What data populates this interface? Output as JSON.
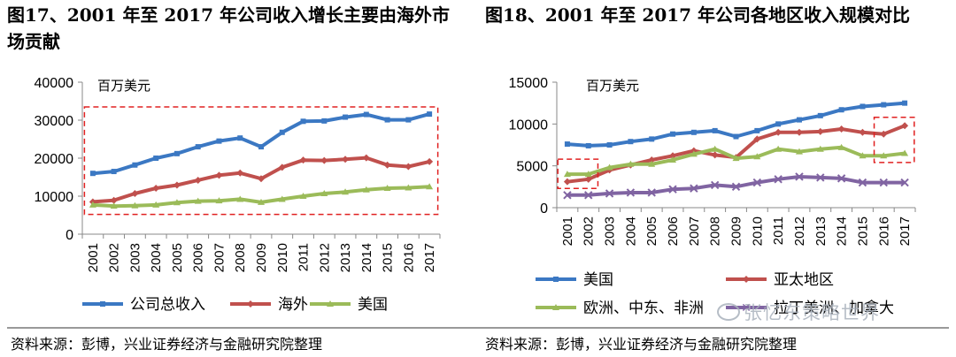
{
  "figure_left": {
    "title": "图17、2001 年至 2017 年公司收入增长主要由海外市场贡献"
  },
  "figure_right": {
    "title": "图18、2001 年至 2017 年公司各地区收入规模对比"
  },
  "source_left": "资料来源：彭博，兴业证券经济与金融研究院整理",
  "source_right": "资料来源：彭博，兴业证券经济与金融研究院整理",
  "watermark": "张忆东策略世界",
  "chart_data": [
    {
      "type": "line",
      "unit_label": "百万美元",
      "x": [
        "2001",
        "2002",
        "2003",
        "2004",
        "2005",
        "2006",
        "2007",
        "2008",
        "2009",
        "2010",
        "2011",
        "2012",
        "2013",
        "2014",
        "2015",
        "2016",
        "2017"
      ],
      "ylim": [
        0,
        40000
      ],
      "yticks": [
        0,
        10000,
        20000,
        30000,
        40000
      ],
      "grid": false,
      "legend_position": "bottom",
      "annotation": "red dashed box highlighting the 公司总收入 and 海外 series",
      "series": [
        {
          "name": "公司总收入",
          "color": "#3b78c3",
          "values": [
            16000,
            16500,
            18200,
            20000,
            21200,
            23000,
            24500,
            25300,
            23000,
            26800,
            29700,
            29800,
            30800,
            31500,
            30100,
            30100,
            31600
          ]
        },
        {
          "name": "海外",
          "color": "#c0504d",
          "values": [
            8500,
            8900,
            10700,
            12100,
            12900,
            14200,
            15500,
            16100,
            14600,
            17600,
            19500,
            19400,
            19700,
            20100,
            18200,
            17800,
            19100
          ]
        },
        {
          "name": "美国",
          "color": "#9bbb59",
          "values": [
            7700,
            7400,
            7500,
            7700,
            8300,
            8700,
            8800,
            9200,
            8400,
            9200,
            10000,
            10700,
            11100,
            11700,
            12100,
            12200,
            12500
          ]
        }
      ]
    },
    {
      "type": "line",
      "unit_label": "百万美元",
      "x": [
        "2001",
        "2002",
        "2003",
        "2004",
        "2005",
        "2006",
        "2007",
        "2008",
        "2009",
        "2010",
        "2011",
        "2012",
        "2013",
        "2014",
        "2015",
        "2016",
        "2017"
      ],
      "ylim": [
        0,
        15000
      ],
      "yticks": [
        0,
        5000,
        10000,
        15000
      ],
      "grid": false,
      "legend_position": "bottom",
      "annotation": "red dashed boxes around 2001-2002 and 2016-2017",
      "series": [
        {
          "name": "美国",
          "color": "#3b78c3",
          "values": [
            7600,
            7400,
            7500,
            7900,
            8200,
            8800,
            9000,
            9200,
            8500,
            9200,
            10000,
            10500,
            11000,
            11700,
            12100,
            12300,
            12500
          ]
        },
        {
          "name": "亚太地区",
          "color": "#c0504d",
          "values": [
            3100,
            3400,
            4500,
            5100,
            5700,
            6200,
            6800,
            6300,
            6000,
            8200,
            9000,
            9000,
            9100,
            9400,
            9000,
            8800,
            9800
          ]
        },
        {
          "name": "欧洲、中东、非洲",
          "color": "#9bbb59",
          "values": [
            4000,
            4000,
            4800,
            5200,
            5200,
            5700,
            6400,
            7000,
            5900,
            6100,
            7000,
            6700,
            7000,
            7200,
            6200,
            6200,
            6500
          ]
        },
        {
          "name": "拉丁美洲、加拿大",
          "color": "#8064a2",
          "values": [
            1500,
            1500,
            1700,
            1800,
            1800,
            2200,
            2300,
            2700,
            2500,
            3000,
            3400,
            3700,
            3600,
            3500,
            3000,
            3000,
            3000
          ]
        }
      ]
    }
  ]
}
